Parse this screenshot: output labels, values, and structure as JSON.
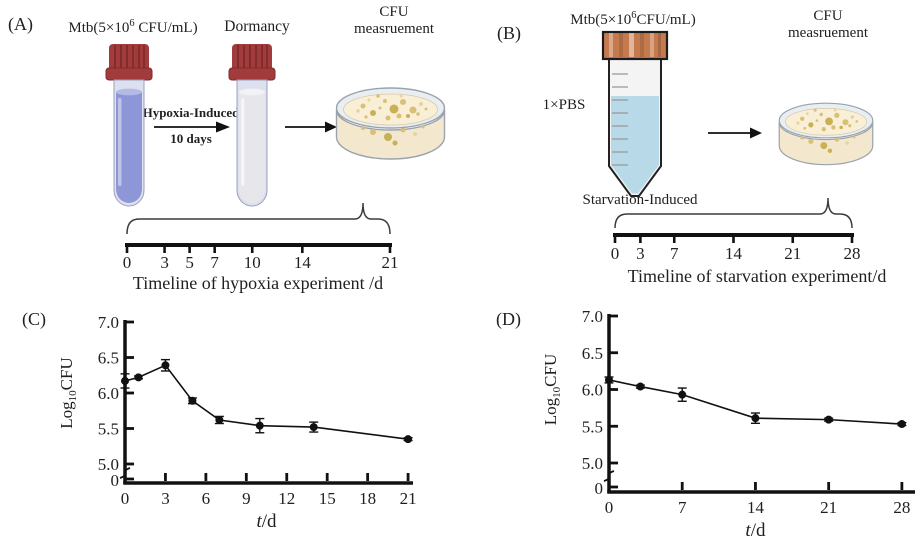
{
  "figure": {
    "panelA": {
      "label": "(A)",
      "mtb": {
        "pre": "Mtb(5×10",
        "sup": "6",
        "post": " CFU/mL)"
      },
      "dormancy": "Dormancy",
      "cfu": {
        "line1": "CFU",
        "line2": "measruement"
      },
      "arrow1": {
        "top": "Hypoxia-Induced",
        "bottom": "10 days"
      },
      "timeline": {
        "ticks": [
          "0",
          "3",
          "5",
          "7",
          "10",
          "14",
          "21"
        ],
        "values": [
          0,
          3,
          5,
          7,
          10,
          14,
          21
        ],
        "max": 21,
        "label": "Timeline of hypoxia experiment /d"
      }
    },
    "panelB": {
      "label": "(B)",
      "mtb": {
        "pre": "Mtb(5×10",
        "sup": "6",
        "post": "CFU/mL)"
      },
      "pbs": "1×PBS",
      "cfu": {
        "line1": "CFU",
        "line2": "measruement"
      },
      "induced": "Starvation-Induced",
      "timeline": {
        "ticks": [
          "0",
          "3",
          "7",
          "14",
          "21",
          "28"
        ],
        "values": [
          0,
          3,
          7,
          14,
          21,
          28
        ],
        "max": 28,
        "label": "Timeline of starvation experiment/d"
      }
    }
  },
  "chart_data": [
    {
      "id": "C",
      "panel_label": "(C)",
      "type": "line",
      "x": [
        0,
        1,
        3,
        5,
        7,
        10,
        14,
        21
      ],
      "y": [
        6.17,
        6.22,
        6.39,
        5.89,
        5.62,
        5.54,
        5.52,
        5.35
      ],
      "yerr": [
        0.1,
        0.02,
        0.08,
        0.04,
        0.05,
        0.1,
        0.07,
        0.02
      ],
      "xticks": [
        0,
        3,
        6,
        9,
        12,
        15,
        18,
        21
      ],
      "yticks": [
        "5.0",
        "5.5",
        "6.0",
        "6.5",
        "7.0"
      ],
      "ytick_values": [
        5.0,
        5.5,
        6.0,
        6.5,
        7.0
      ],
      "xlim": [
        0,
        21
      ],
      "ylim": [
        5.0,
        7.0
      ],
      "broken_axis_zero": "0",
      "xlabel": {
        "italic": "t",
        "rest": "/d"
      },
      "ylabel": {
        "pre": "Log",
        "sub": "10",
        "post": "CFU"
      },
      "grid": false,
      "legend": null,
      "marker": "filled-circle-with-error-bars"
    },
    {
      "id": "D",
      "panel_label": "(D)",
      "type": "line",
      "x": [
        0,
        3,
        7,
        14,
        21,
        28
      ],
      "y": [
        6.13,
        6.04,
        5.93,
        5.61,
        5.59,
        5.53
      ],
      "yerr": [
        0.04,
        0.02,
        0.09,
        0.07,
        0.02,
        0.02
      ],
      "xticks": [
        0,
        7,
        14,
        21,
        28
      ],
      "yticks": [
        "5.0",
        "5.5",
        "6.0",
        "6.5",
        "7.0"
      ],
      "ytick_values": [
        5.0,
        5.5,
        6.0,
        6.5,
        7.0
      ],
      "xlim": [
        0,
        28
      ],
      "ylim": [
        5.0,
        7.0
      ],
      "broken_axis_zero": "0",
      "xlabel": {
        "italic": "t",
        "rest": "/d"
      },
      "ylabel": {
        "pre": "Log",
        "sub": "10",
        "post": "CFU"
      },
      "grid": false,
      "legend": null,
      "marker": "filled-circle-with-error-bars"
    }
  ],
  "colors": {
    "text": "#1f1f1f",
    "axis": "#111111",
    "series": "#111111",
    "tube-cap": "#a23c3c",
    "tube-cap-dark": "#7e2a2a",
    "hypoxia-liquid": "#8d96d6",
    "hypoxia-surface": "#b4bae6",
    "dormancy-liquid": "#e6e6eb",
    "dormancy-surface": "#f2f2f5",
    "glass": "#dde0ef",
    "falcon-cap": "#c57a4e",
    "falcon-liquid": "#b7d9e8",
    "dish-rim": "#e9eef3",
    "dish-wall": "#f3e7cd",
    "agar": "#f9efd7",
    "colony": "#d8c076",
    "colony-dark": "#c9b055",
    "colony-light": "#e5d49b",
    "outline-grey": "#9aa3ad"
  }
}
